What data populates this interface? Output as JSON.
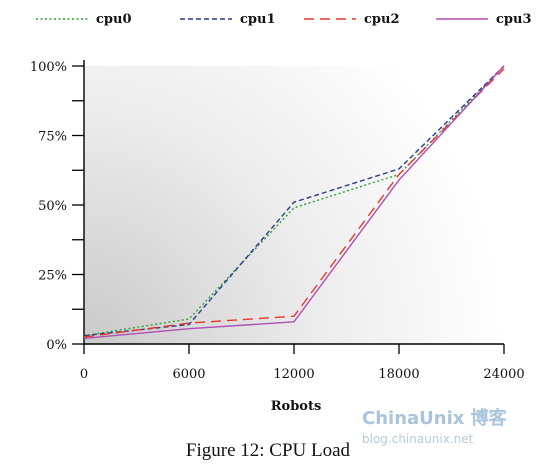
{
  "caption": "Figure 12: CPU Load",
  "watermark": {
    "brand": "ChinaUnix 博客",
    "url": "blog.chinaunix.net"
  },
  "chart_data": {
    "type": "line",
    "title": "",
    "xlabel": "Robots",
    "ylabel": "",
    "xlim": [
      0,
      24000
    ],
    "ylim": [
      0,
      100
    ],
    "x_ticks": [
      0,
      6000,
      12000,
      18000,
      24000
    ],
    "x_tick_labels": [
      "0",
      "6000",
      "12000",
      "18000",
      "24000"
    ],
    "y_ticks": [
      0,
      25,
      50,
      75,
      100
    ],
    "y_tick_labels": [
      "0%",
      "25%",
      "50%",
      "75%",
      "100%"
    ],
    "grid": false,
    "legend_position": "top",
    "series": [
      {
        "name": "cpu0",
        "color": "#2ca02c",
        "dash": "dotted",
        "x": [
          0,
          6000,
          12000,
          18000,
          24000
        ],
        "y": [
          3,
          9,
          49,
          61,
          100
        ]
      },
      {
        "name": "cpu1",
        "color": "#2b3a8f",
        "dash": "dashed",
        "x": [
          0,
          6000,
          12000,
          18000,
          24000
        ],
        "y": [
          3,
          7,
          51,
          63,
          100
        ]
      },
      {
        "name": "cpu2",
        "color": "#e8382a",
        "dash": "longdash",
        "x": [
          0,
          6000,
          12000,
          18000,
          24000
        ],
        "y": [
          2.5,
          7.5,
          10,
          61,
          99
        ]
      },
      {
        "name": "cpu3",
        "color": "#b04fb5",
        "dash": "solid",
        "x": [
          0,
          6000,
          12000,
          18000,
          24000
        ],
        "y": [
          2,
          5.5,
          8,
          59,
          100
        ]
      }
    ]
  }
}
